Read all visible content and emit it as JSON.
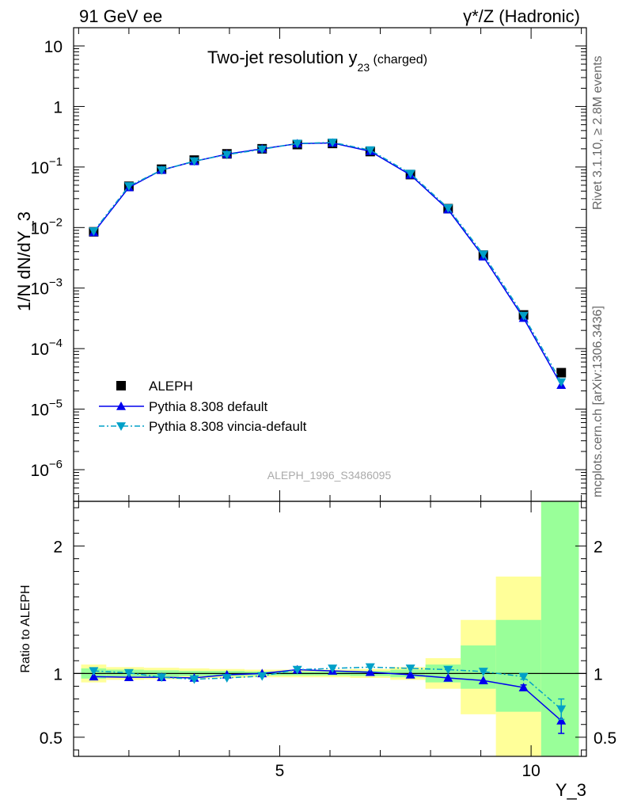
{
  "header": {
    "left": "91 GeV ee",
    "right": "γ*/Z (Hadronic)"
  },
  "side_text": {
    "rivet": "Rivet 3.1.10, ≥ 2.8M events",
    "mcplots": "mcplots.cern.ch [arXiv:1306.3436]"
  },
  "analysis_id": "ALEPH_1996_S3486095",
  "colors": {
    "data": "#000000",
    "default": "#0000ee",
    "vincia": "#00a0c8",
    "band_inner": "#99ff99",
    "band_outer": "#ffff99"
  },
  "chart_data": [
    {
      "type": "line",
      "title": "Two-jet resolution y",
      "title_sub": "23",
      "title_suffix": " (charged)",
      "ylabel": "1/N dN/dY_3",
      "yscale": "log",
      "ylim": [
        3e-07,
        20
      ],
      "xlim": [
        0.9,
        11.1
      ],
      "yticks": [
        {
          "value": 10,
          "label": "10"
        },
        {
          "value": 1,
          "label": "1"
        },
        {
          "value": 0.1,
          "base": "10",
          "exp": "−1"
        },
        {
          "value": 0.01,
          "base": "10",
          "exp": "−2"
        },
        {
          "value": 0.001,
          "base": "10",
          "exp": "−3"
        },
        {
          "value": 0.0001,
          "base": "10",
          "exp": "−4"
        },
        {
          "value": 1e-05,
          "base": "10",
          "exp": "−5"
        },
        {
          "value": 1e-06,
          "base": "10",
          "exp": "−6"
        }
      ],
      "legend_position": "bottom-left",
      "x": [
        1.3,
        2.0,
        2.65,
        3.3,
        3.95,
        4.65,
        5.35,
        6.05,
        6.8,
        7.6,
        8.35,
        9.05,
        9.85,
        10.6
      ],
      "series": [
        {
          "name": "ALEPH",
          "marker": "square",
          "values": [
            0.0085,
            0.048,
            0.092,
            0.13,
            0.165,
            0.2,
            0.235,
            0.245,
            0.18,
            0.075,
            0.0205,
            0.0035,
            0.00036,
            4e-05
          ]
        },
        {
          "name": "Pythia 8.308 default",
          "marker": "triangle-up",
          "values": [
            0.0083,
            0.046,
            0.089,
            0.124,
            0.163,
            0.2,
            0.243,
            0.25,
            0.182,
            0.074,
            0.0198,
            0.0033,
            0.00032,
            2.5e-05
          ]
        },
        {
          "name": "Pythia 8.308 vincia-default",
          "marker": "triangle-down",
          "values": [
            0.0087,
            0.0485,
            0.089,
            0.125,
            0.16,
            0.196,
            0.245,
            0.255,
            0.19,
            0.078,
            0.021,
            0.0036,
            0.00035,
            2.8e-05
          ]
        }
      ]
    },
    {
      "type": "line",
      "ylabel": "Ratio to ALEPH",
      "xlabel": "Y_3",
      "ylim": [
        0.35,
        2.35
      ],
      "xlim": [
        0.9,
        11.1
      ],
      "yticks": [
        {
          "value": 0.5,
          "label": "0.5"
        },
        {
          "value": 1,
          "label": "1"
        },
        {
          "value": 2,
          "label": "2"
        }
      ],
      "xticks": [
        {
          "value": 5,
          "label": "5"
        },
        {
          "value": 10,
          "label": "10"
        }
      ],
      "x": [
        1.3,
        2.0,
        2.65,
        3.3,
        3.95,
        4.65,
        5.35,
        6.05,
        6.8,
        7.6,
        8.35,
        9.05,
        9.85,
        10.6
      ],
      "bins": [
        {
          "x0": 1.05,
          "x1": 1.55,
          "inner": [
            0.96,
            1.04
          ],
          "outer": [
            0.93,
            1.07
          ]
        },
        {
          "x0": 1.55,
          "x1": 2.3,
          "inner": [
            0.97,
            1.03
          ],
          "outer": [
            0.95,
            1.05
          ]
        },
        {
          "x0": 2.3,
          "x1": 3.0,
          "inner": [
            0.975,
            1.025
          ],
          "outer": [
            0.955,
            1.045
          ]
        },
        {
          "x0": 3.0,
          "x1": 3.6,
          "inner": [
            0.98,
            1.02
          ],
          "outer": [
            0.96,
            1.04
          ]
        },
        {
          "x0": 3.6,
          "x1": 4.3,
          "inner": [
            0.98,
            1.02
          ],
          "outer": [
            0.965,
            1.035
          ]
        },
        {
          "x0": 4.3,
          "x1": 5.0,
          "inner": [
            0.985,
            1.015
          ],
          "outer": [
            0.97,
            1.03
          ]
        },
        {
          "x0": 5.0,
          "x1": 5.7,
          "inner": [
            0.985,
            1.015
          ],
          "outer": [
            0.97,
            1.03
          ]
        },
        {
          "x0": 5.7,
          "x1": 6.4,
          "inner": [
            0.985,
            1.015
          ],
          "outer": [
            0.97,
            1.03
          ]
        },
        {
          "x0": 6.4,
          "x1": 7.2,
          "inner": [
            0.98,
            1.02
          ],
          "outer": [
            0.965,
            1.035
          ]
        },
        {
          "x0": 7.2,
          "x1": 7.9,
          "inner": [
            0.97,
            1.03
          ],
          "outer": [
            0.95,
            1.05
          ]
        },
        {
          "x0": 7.9,
          "x1": 8.6,
          "inner": [
            0.93,
            1.07
          ],
          "outer": [
            0.88,
            1.12
          ]
        },
        {
          "x0": 8.6,
          "x1": 9.3,
          "inner": [
            0.88,
            1.22
          ],
          "outer": [
            0.68,
            1.42
          ]
        },
        {
          "x0": 9.3,
          "x1": 10.2,
          "inner": [
            0.7,
            1.42
          ],
          "outer": [
            0.35,
            1.76
          ]
        },
        {
          "x0": 10.2,
          "x1": 10.95,
          "inner": [
            0.35,
            2.35
          ],
          "outer": [
            0.35,
            2.35
          ]
        }
      ],
      "series": [
        {
          "name": "Pythia 8.308 default",
          "marker": "triangle-up",
          "values": [
            0.975,
            0.97,
            0.97,
            0.965,
            0.99,
            1.0,
            1.03,
            1.02,
            1.01,
            0.99,
            0.965,
            0.945,
            0.89,
            0.63
          ],
          "errors": [
            0,
            0,
            0,
            0,
            0,
            0,
            0,
            0,
            0,
            0,
            0,
            0,
            0.02,
            0.1
          ]
        },
        {
          "name": "Pythia 8.308 vincia-default",
          "marker": "triangle-down",
          "values": [
            1.02,
            1.005,
            0.97,
            0.955,
            0.965,
            0.98,
            1.03,
            1.04,
            1.05,
            1.04,
            1.03,
            1.015,
            0.975,
            0.72
          ],
          "errors": [
            0,
            0,
            0,
            0,
            0,
            0,
            0,
            0,
            0,
            0,
            0,
            0,
            0.02,
            0.08
          ]
        }
      ]
    }
  ]
}
